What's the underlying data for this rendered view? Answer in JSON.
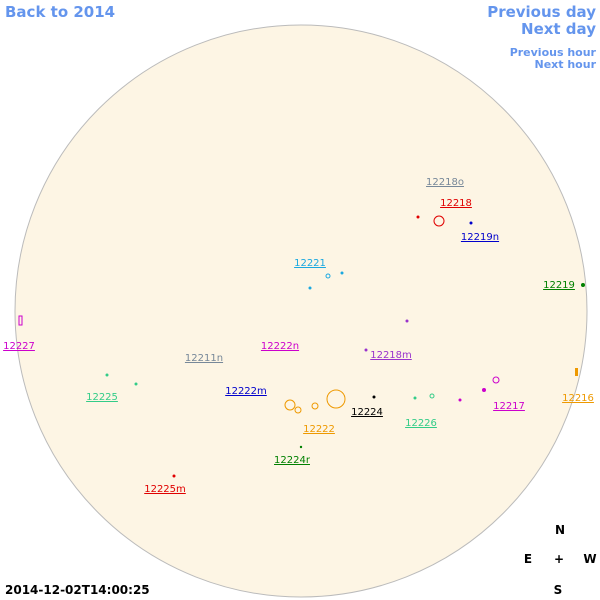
{
  "nav": {
    "back": "Back to 2014",
    "previous_day": "Previous day",
    "next_day": "Next day",
    "previous_hour": "Previous hour",
    "next_hour": "Next hour"
  },
  "timestamp": "2014-12-02T14:00:25",
  "compass": {
    "north": "N",
    "east": "E",
    "center": "+",
    "west": "W",
    "south": "S"
  },
  "regions": [
    {
      "label": "12218o",
      "color": "#778899"
    },
    {
      "label": "12218",
      "color": "#e00000"
    },
    {
      "label": "12219n",
      "color": "#0000cc"
    },
    {
      "label": "12221",
      "color": "#1aa8e0"
    },
    {
      "label": "12219",
      "color": "#008000"
    },
    {
      "label": "12227",
      "color": "#cc00cc"
    },
    {
      "label": "12222n",
      "color": "#cc00cc"
    },
    {
      "label": "12211n",
      "color": "#778899"
    },
    {
      "label": "12218m",
      "color": "#9933cc"
    },
    {
      "label": "12225",
      "color": "#33cc88"
    },
    {
      "label": "12222m",
      "color": "#0000cc"
    },
    {
      "label": "12224",
      "color": "#000000"
    },
    {
      "label": "12216",
      "color": "#ee9900"
    },
    {
      "label": "12217",
      "color": "#cc00cc"
    },
    {
      "label": "12226",
      "color": "#33cc88"
    },
    {
      "label": "12222",
      "color": "#ee9900"
    },
    {
      "label": "12224r",
      "color": "#008000"
    },
    {
      "label": "12225m",
      "color": "#e00000"
    }
  ]
}
